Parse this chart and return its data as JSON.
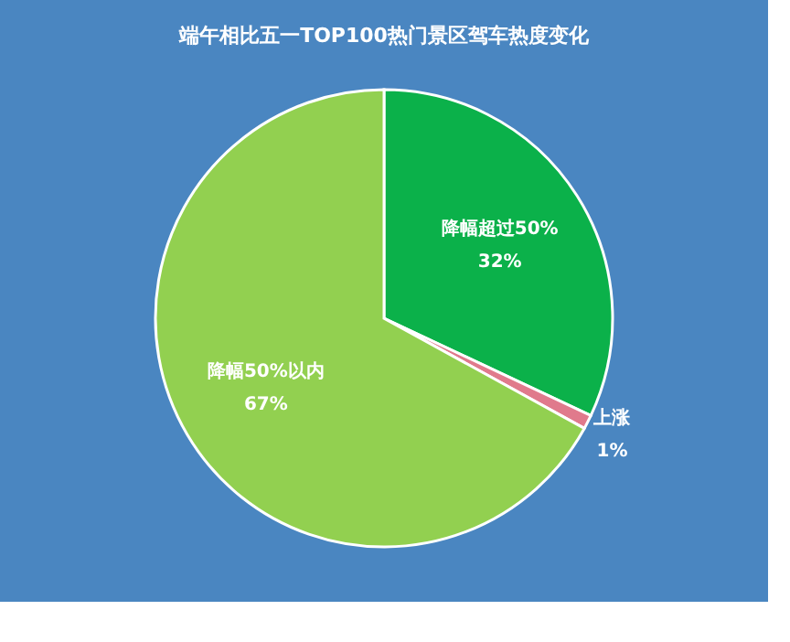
{
  "chart_data": {
    "type": "pie",
    "title": "端午相比五一TOP100热门景区驾车热度变化",
    "categories": [
      "降幅超过50%",
      "上涨",
      "降幅50%以内"
    ],
    "values": [
      32,
      1,
      67
    ],
    "value_labels": [
      "32%",
      "1%",
      "67%"
    ],
    "colors": [
      "#0bb14a",
      "#e07a8c",
      "#92d050"
    ],
    "legend": false
  }
}
